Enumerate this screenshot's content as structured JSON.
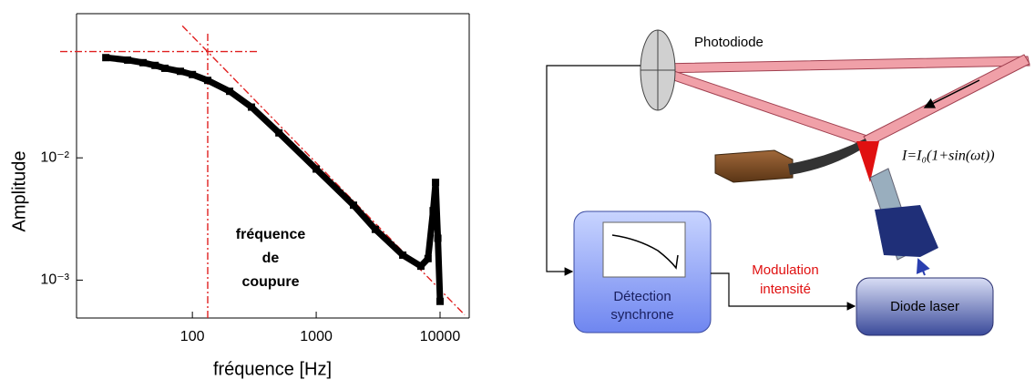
{
  "chart_data": {
    "type": "scatter",
    "x_label": "fréquence [Hz]",
    "y_label": "Amplitude",
    "annotation": [
      "fréquence",
      "de",
      "coupure"
    ],
    "log_x": true,
    "log_y": true,
    "color": "#000000",
    "ref_color": "#e02020",
    "xlim": [
      11.6,
      17200
    ],
    "ylim": [
      0.00049,
      0.151
    ],
    "xticks": [
      100,
      1000,
      10000
    ],
    "yticks": [
      {
        "value": 0.001,
        "label": "10⁻³"
      },
      {
        "value": 0.01,
        "label": "10⁻²"
      }
    ],
    "x": [
      20,
      30,
      40,
      50,
      60,
      80,
      100,
      133,
      200,
      300,
      500,
      1000,
      2000,
      3000,
      5000,
      7000,
      8000,
      8800,
      9200,
      9600,
      10000
    ],
    "values": [
      0.066,
      0.063,
      0.06,
      0.057,
      0.054,
      0.051,
      0.048,
      0.043,
      0.035,
      0.026,
      0.016,
      0.0081,
      0.0041,
      0.0026,
      0.0016,
      0.0013,
      0.0015,
      0.0037,
      0.0063,
      0.0022,
      0.00067
    ],
    "cutoff_x": 133,
    "plateau_y": 0.074,
    "asymptote": {
      "x": [
        83,
        15800
      ],
      "y": [
        0.12,
        0.00052
      ]
    }
  },
  "diagram": {
    "photodiode": "Photodiode",
    "formula": "I=I₀(1+sin(ωt))",
    "detection": [
      "Détection",
      "synchrone"
    ],
    "modulation": [
      "Modulation",
      "intensité"
    ],
    "laser": "Diode laser"
  }
}
